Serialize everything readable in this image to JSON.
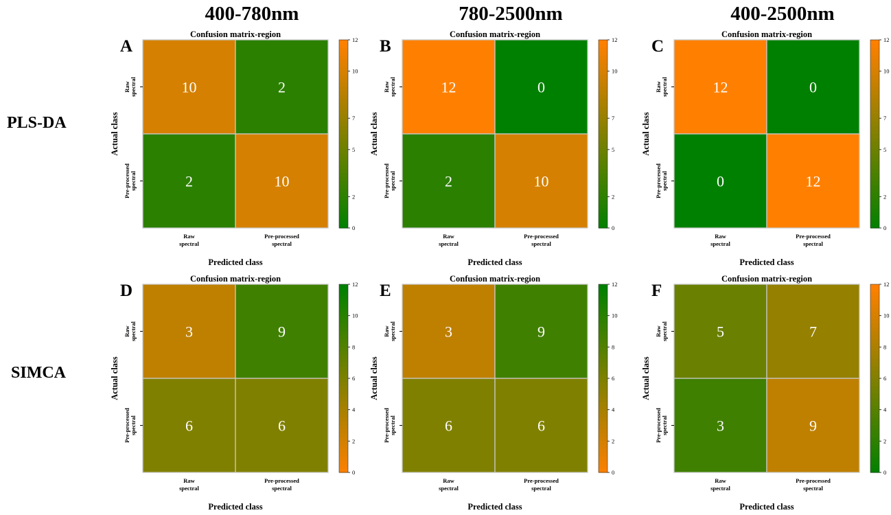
{
  "column_titles": [
    "400-780nm",
    "780-2500nm",
    "400-2500nm"
  ],
  "row_labels": [
    "PLS-DA",
    "SIMCA"
  ],
  "colors": {
    "orange": "#ff8000",
    "green": "#008000",
    "grid": "#c8c8c8"
  },
  "chart_data": [
    {
      "type": "heatmap",
      "panel": "A",
      "title": "Confusion matrix-region",
      "xlabel": "Predicted class",
      "ylabel": "Actual class",
      "x_categories": [
        "Raw spectral",
        "Pre-processed spectral"
      ],
      "y_categories": [
        "Raw spectral",
        "Pre-processed spectral"
      ],
      "values": [
        [
          10,
          2
        ],
        [
          2,
          10
        ]
      ],
      "colorbar": {
        "range": [
          0,
          12
        ],
        "ticks": [
          0,
          2,
          5,
          7,
          10,
          12
        ],
        "low_color": "#008000",
        "high_color": "#ff8000"
      }
    },
    {
      "type": "heatmap",
      "panel": "B",
      "title": "Confusion matrix-region",
      "xlabel": "Predicted class",
      "ylabel": "Actual class",
      "x_categories": [
        "Raw spectral",
        "Pre-processed spectral"
      ],
      "y_categories": [
        "Raw spectral",
        "Pre-processed spectral"
      ],
      "values": [
        [
          12,
          0
        ],
        [
          2,
          10
        ]
      ],
      "colorbar": {
        "range": [
          0,
          12
        ],
        "ticks": [
          0,
          2,
          5,
          7,
          10,
          12
        ],
        "low_color": "#008000",
        "high_color": "#ff8000"
      }
    },
    {
      "type": "heatmap",
      "panel": "C",
      "title": "Confusion matrix-region",
      "xlabel": "Predicted class",
      "ylabel": "Actual class",
      "x_categories": [
        "Raw spectral",
        "Pre-processed spectral"
      ],
      "y_categories": [
        "Raw spectral",
        "Pre-processed spectral"
      ],
      "values": [
        [
          12,
          0
        ],
        [
          0,
          12
        ]
      ],
      "colorbar": {
        "range": [
          0,
          12
        ],
        "ticks": [
          0,
          2,
          5,
          7,
          10,
          12
        ],
        "low_color": "#008000",
        "high_color": "#ff8000"
      }
    },
    {
      "type": "heatmap",
      "panel": "D",
      "title": "Confusion matrix-region",
      "xlabel": "Predicted class",
      "ylabel": "Actual class",
      "x_categories": [
        "Raw spectral",
        "Pre-processed spectral"
      ],
      "y_categories": [
        "Raw spectral",
        "Pre-processed spectral"
      ],
      "values": [
        [
          3,
          9
        ],
        [
          6,
          6
        ]
      ],
      "colorbar": {
        "range": [
          0,
          12
        ],
        "ticks": [
          0,
          2,
          4,
          6,
          8,
          10,
          12
        ],
        "low_color": "#ff8000",
        "high_color": "#008000"
      }
    },
    {
      "type": "heatmap",
      "panel": "E",
      "title": "Confusion matrix-region",
      "xlabel": "Predicted class",
      "ylabel": "Actual class",
      "x_categories": [
        "Raw spectral",
        "Pre-processed spectral"
      ],
      "y_categories": [
        "Raw spectral",
        "Pre-processed spectral"
      ],
      "values": [
        [
          3,
          9
        ],
        [
          6,
          6
        ]
      ],
      "colorbar": {
        "range": [
          0,
          12
        ],
        "ticks": [
          0,
          2,
          4,
          6,
          8,
          10,
          12
        ],
        "low_color": "#ff8000",
        "high_color": "#008000"
      }
    },
    {
      "type": "heatmap",
      "panel": "F",
      "title": "Confusion matrix-region",
      "xlabel": "Predicted class",
      "ylabel": "Actual class",
      "x_categories": [
        "Raw spectral",
        "Pre-processed spectral"
      ],
      "y_categories": [
        "Raw spectral",
        "Pre-processed spectral"
      ],
      "values": [
        [
          5,
          7
        ],
        [
          3,
          9
        ]
      ],
      "colorbar": {
        "range": [
          0,
          12
        ],
        "ticks": [
          0,
          2,
          4,
          6,
          8,
          10,
          12
        ],
        "low_color": "#008000",
        "high_color": "#ff8000"
      }
    }
  ]
}
